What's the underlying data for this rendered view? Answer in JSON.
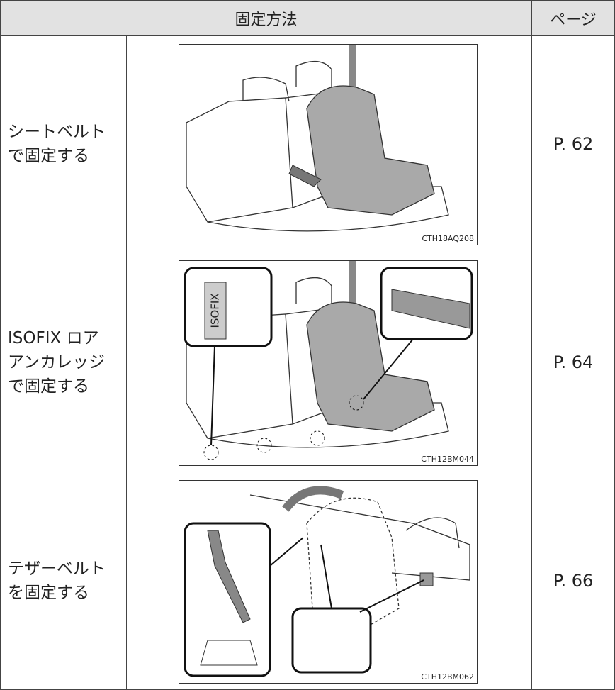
{
  "table": {
    "header": [
      "固定方法",
      "ページ"
    ],
    "rows": [
      {
        "method": [
          "シートベルト",
          "で固定する"
        ],
        "figure_code": "CTH18AQ208",
        "page": "P. 62"
      },
      {
        "method": [
          "ISOFIX ロア",
          "アンカレッジ",
          "で固定する"
        ],
        "figure_label": "ISOFIX",
        "figure_code": "CTH12BM044",
        "page": "P. 64"
      },
      {
        "method": [
          "テザーベルト",
          "を固定する"
        ],
        "figure_code": "CTH12BM062",
        "page": "P. 66"
      }
    ]
  }
}
